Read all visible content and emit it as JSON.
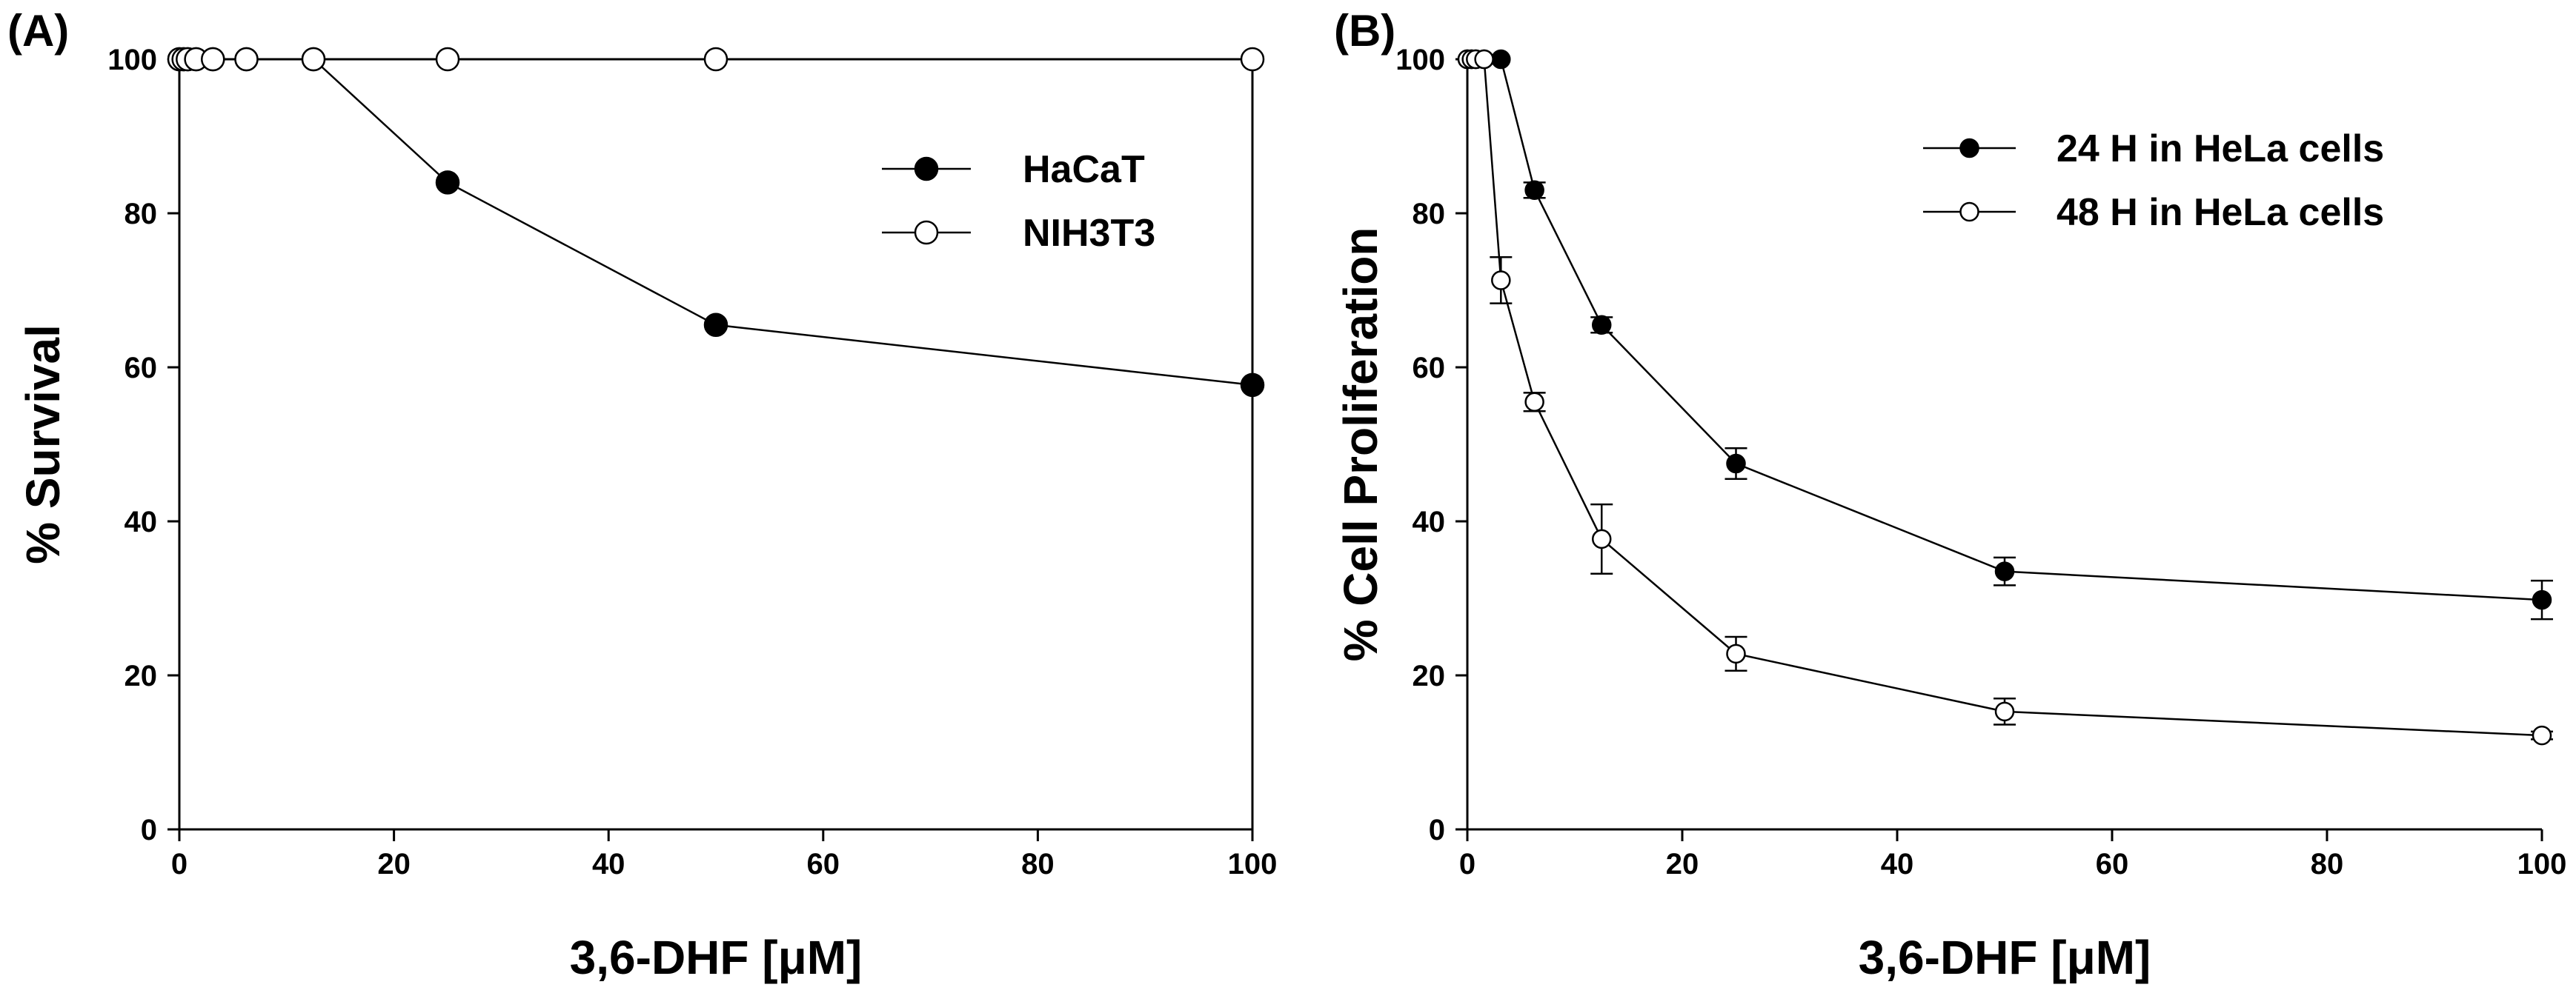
{
  "chart_data": [
    {
      "panel_label": "(A)",
      "type": "line",
      "xlabel": "3,6-DHF [μM]",
      "ylabel": "% Survival",
      "xlim": [
        0,
        100
      ],
      "ylim": [
        0,
        100
      ],
      "xticks": [
        0,
        20,
        40,
        60,
        80,
        100
      ],
      "yticks": [
        0,
        20,
        40,
        60,
        80,
        100
      ],
      "box": "closed",
      "legend_position": "top-right",
      "series": [
        {
          "name": "HaCaT",
          "marker": "filled-circle",
          "x": [
            0,
            0.39,
            0.78,
            1.56,
            3.125,
            6.25,
            12.5,
            25,
            50,
            100
          ],
          "y": [
            100,
            100,
            100,
            100,
            100,
            100,
            100,
            84,
            65.5,
            57.7
          ]
        },
        {
          "name": "NIH3T3",
          "marker": "open-circle",
          "x": [
            0,
            0.39,
            0.78,
            1.56,
            3.125,
            6.25,
            12.5,
            25,
            50,
            100
          ],
          "y": [
            100,
            100,
            100,
            100,
            100,
            100,
            100,
            100,
            100,
            100
          ]
        }
      ]
    },
    {
      "panel_label": "(B)",
      "type": "line",
      "xlabel": "3,6-DHF [μM]",
      "ylabel": "% Cell Proliferation",
      "xlim": [
        0,
        100
      ],
      "ylim": [
        0,
        100
      ],
      "xticks": [
        0,
        20,
        40,
        60,
        80,
        100
      ],
      "yticks": [
        0,
        20,
        40,
        60,
        80,
        100
      ],
      "box": "open",
      "legend_position": "top-right",
      "series": [
        {
          "name": "24 H in HeLa cells",
          "marker": "filled-circle",
          "x": [
            0,
            0.39,
            0.78,
            1.56,
            3.125,
            6.25,
            12.5,
            25,
            50,
            100
          ],
          "y": [
            100,
            100,
            100,
            100,
            100,
            83,
            65.5,
            47.5,
            33.5,
            29.8
          ],
          "error": [
            0,
            0,
            0,
            0,
            0,
            1,
            1,
            2,
            1.8,
            2.5
          ]
        },
        {
          "name": "48 H in HeLa cells",
          "marker": "open-circle",
          "x": [
            0,
            0.39,
            0.78,
            1.56,
            3.125,
            6.25,
            12.5,
            25,
            50,
            100
          ],
          "y": [
            100,
            100,
            100,
            100,
            71.3,
            55.5,
            37.7,
            22.8,
            15.3,
            12.2
          ],
          "error": [
            0,
            0,
            0,
            0,
            3,
            1.2,
            4.5,
            2.2,
            1.7,
            0.5
          ]
        }
      ]
    }
  ]
}
